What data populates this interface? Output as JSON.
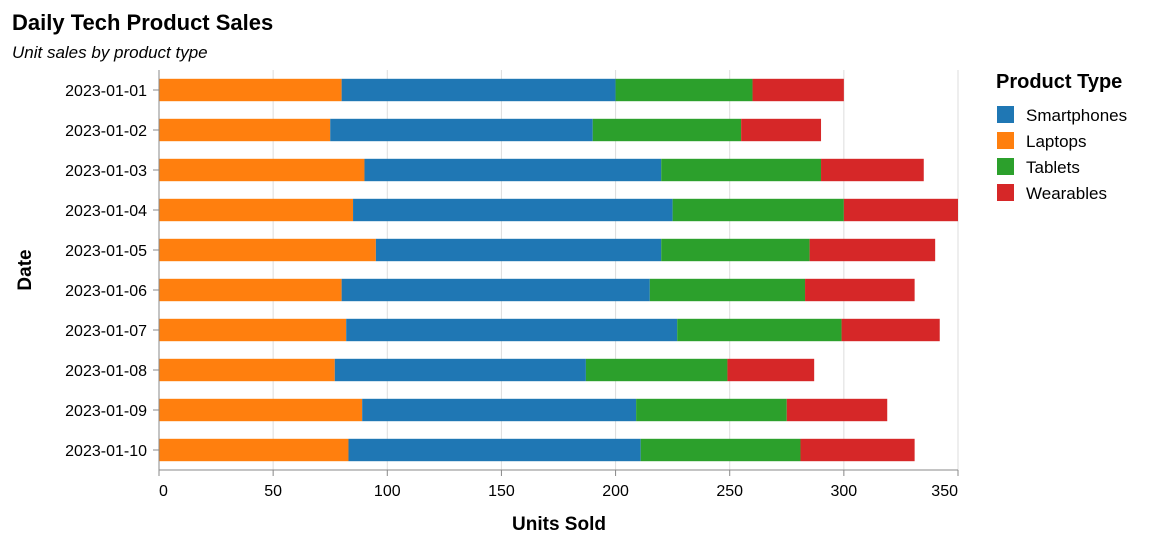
{
  "chart_data": {
    "type": "bar",
    "orientation": "horizontal",
    "stacked": true,
    "title": "Daily Tech Product Sales",
    "subtitle": "Unit sales by product type",
    "xlabel": "Units Sold",
    "ylabel": "Date",
    "xlim": [
      0,
      350
    ],
    "xticks": [
      0,
      50,
      100,
      150,
      200,
      250,
      300,
      350
    ],
    "grid": true,
    "legend": {
      "title": "Product Type",
      "placement": "right"
    },
    "categories": [
      "2023-01-01",
      "2023-01-02",
      "2023-01-03",
      "2023-01-04",
      "2023-01-05",
      "2023-01-06",
      "2023-01-07",
      "2023-01-08",
      "2023-01-09",
      "2023-01-10"
    ],
    "legend_order": [
      "Smartphones",
      "Laptops",
      "Tablets",
      "Wearables"
    ],
    "stack_order": [
      "Laptops",
      "Smartphones",
      "Tablets",
      "Wearables"
    ],
    "series": [
      {
        "name": "Smartphones",
        "color": "#1f77b4",
        "values": [
          120,
          115,
          130,
          140,
          125,
          135,
          145,
          110,
          120,
          128
        ]
      },
      {
        "name": "Laptops",
        "color": "#ff7f0e",
        "values": [
          80,
          75,
          90,
          85,
          95,
          80,
          82,
          77,
          89,
          83
        ]
      },
      {
        "name": "Tablets",
        "color": "#2ca02c",
        "values": [
          60,
          65,
          70,
          75,
          65,
          68,
          72,
          62,
          66,
          70
        ]
      },
      {
        "name": "Wearables",
        "color": "#d62728",
        "values": [
          40,
          35,
          45,
          50,
          55,
          48,
          43,
          38,
          44,
          50
        ]
      }
    ]
  }
}
